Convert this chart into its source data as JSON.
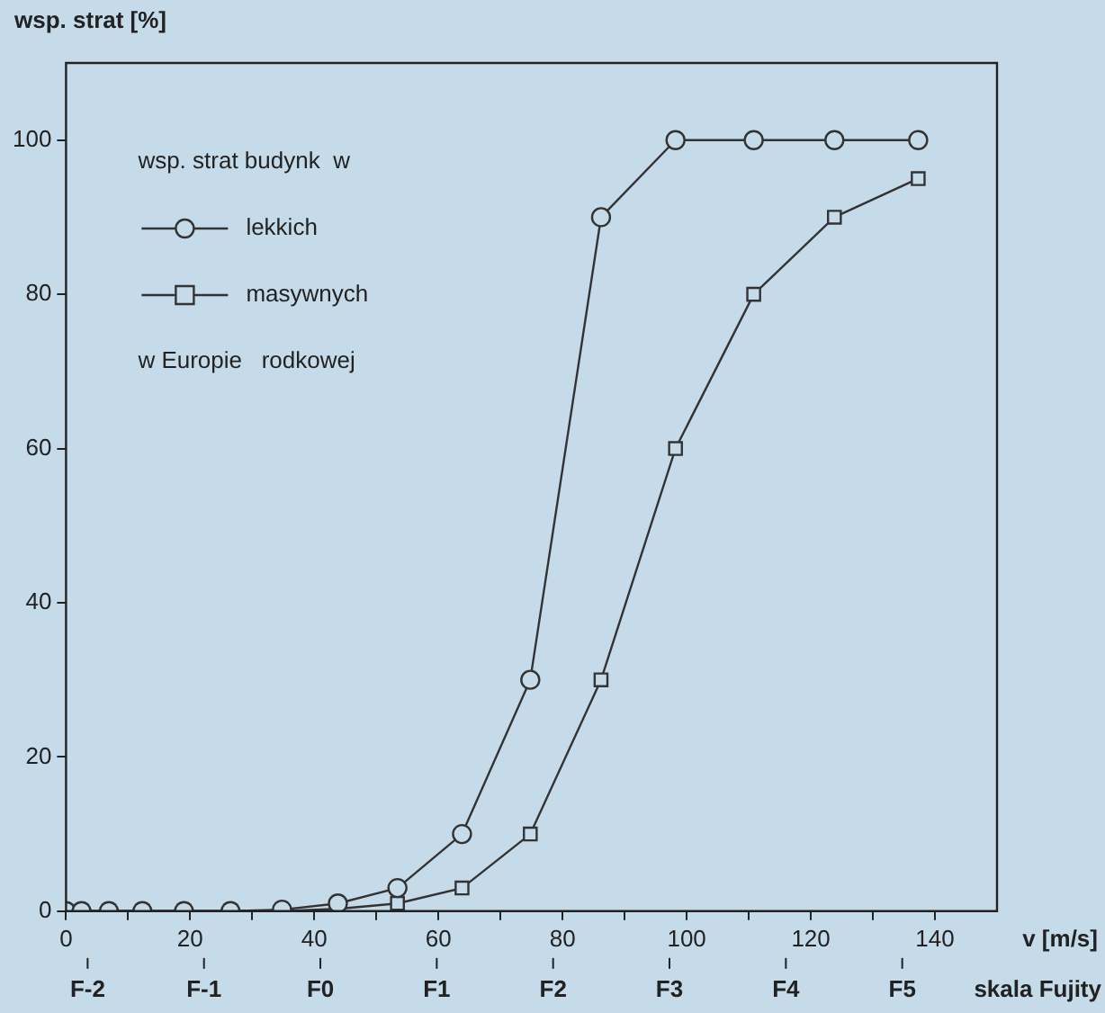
{
  "chart_data": {
    "type": "line",
    "ylabel": "wsp. strat [%]",
    "xlabel": "v [m/s]",
    "x2label": "skala Fujity",
    "legend_title": "wsp. strat budynk  w",
    "annotations": [
      "w Europie   rodkowej",
      "F-2",
      "F-1",
      "F0",
      "F1",
      "F2",
      "F3",
      "F4",
      "F5"
    ],
    "x": [
      0,
      2.5,
      6.9,
      12.3,
      19,
      26.5,
      34.8,
      43.8,
      53.4,
      63.8,
      74.8,
      86.2,
      98.2,
      110.8,
      123.8,
      137.3
    ],
    "series": [
      {
        "name": "lekkich",
        "color": "#333333",
        "marker": "circle",
        "values": [
          0,
          0,
          0,
          0,
          0,
          0,
          0.2,
          1,
          3,
          10,
          30,
          90,
          100,
          100,
          100,
          100
        ]
      },
      {
        "name": "masywnych",
        "color": "#333333",
        "marker": "square",
        "values": [
          0,
          0,
          0,
          0,
          0,
          0,
          0,
          0.3,
          1,
          3,
          10,
          30,
          60,
          80,
          90,
          95
        ]
      }
    ],
    "xlim": [
      0,
      150
    ],
    "xticks": [
      0,
      {
        "value": 10,
        "label": null
      },
      20,
      {
        "value": 30,
        "label": null
      },
      40,
      {
        "value": 50,
        "label": null
      },
      60,
      {
        "value": 70,
        "label": null
      },
      80,
      {
        "value": 90,
        "label": null
      },
      100,
      {
        "value": 110,
        "label": null
      },
      120,
      {
        "value": 130,
        "label": null
      },
      140
    ],
    "ylim": [
      0,
      110
    ],
    "yticks": [
      0,
      20,
      40,
      60,
      80,
      100
    ],
    "grid": false,
    "legend": "top left",
    "line_style": "solid"
  }
}
